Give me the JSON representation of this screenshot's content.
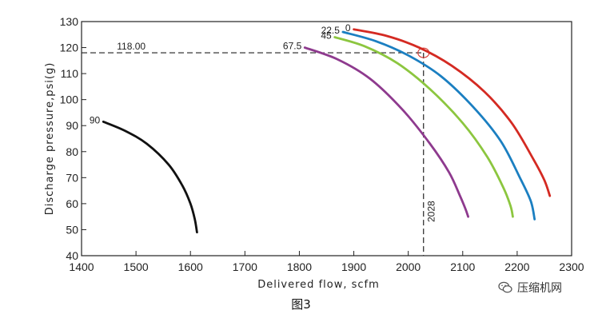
{
  "chart_data": {
    "type": "line",
    "xlabel": "Delivered flow, scfm",
    "ylabel": "Discharge pressure,psi(g)",
    "xlim": [
      1400,
      2300
    ],
    "ylim": [
      40,
      130
    ],
    "xticks": [
      1400,
      1500,
      1600,
      1700,
      1800,
      1900,
      2000,
      2100,
      2200,
      2300
    ],
    "yticks": [
      40,
      50,
      60,
      70,
      80,
      90,
      100,
      110,
      120,
      130
    ],
    "grid": false,
    "series": [
      {
        "name": "0",
        "color": "#d42a22",
        "x": [
          1900,
          1960,
          2020,
          2080,
          2140,
          2190,
          2230,
          2250,
          2260
        ],
        "y": [
          127,
          124.5,
          120,
          113,
          103,
          91,
          77,
          69,
          63
        ]
      },
      {
        "name": "22.5",
        "color": "#1b7fc1",
        "x": [
          1880,
          1940,
          2000,
          2060,
          2120,
          2170,
          2205,
          2225,
          2232
        ],
        "y": [
          126,
          122.5,
          117,
          109,
          97,
          84,
          70,
          61,
          54
        ]
      },
      {
        "name": "45",
        "color": "#8cc63f",
        "x": [
          1865,
          1920,
          1980,
          2040,
          2100,
          2145,
          2175,
          2188,
          2192
        ],
        "y": [
          124,
          120.5,
          114,
          104,
          91,
          78,
          66,
          59,
          55
        ]
      },
      {
        "name": "67.5",
        "color": "#8e3a8e",
        "x": [
          1810,
          1870,
          1930,
          1990,
          2040,
          2075,
          2095,
          2105,
          2110
        ],
        "y": [
          120,
          115.5,
          108,
          96,
          83,
          72,
          63,
          58,
          55
        ]
      },
      {
        "name": "90",
        "color": "#111111",
        "x": [
          1440,
          1480,
          1520,
          1560,
          1585,
          1600,
          1608,
          1612
        ],
        "y": [
          91.5,
          88,
          83,
          75,
          67,
          60,
          54,
          49
        ]
      }
    ],
    "annotations": {
      "h_value_label": "118.00",
      "h_value": 118,
      "v_value_label": "2028",
      "v_value": 2028
    }
  },
  "caption": "图3",
  "watermark": {
    "text": "压缩机网",
    "icon": "wechat-icon"
  }
}
